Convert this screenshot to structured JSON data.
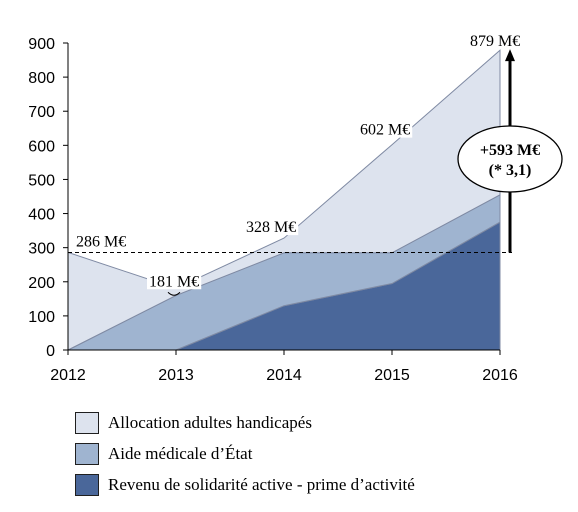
{
  "chart_data": {
    "type": "area",
    "stacked": true,
    "x": [
      "2012",
      "2013",
      "2014",
      "2015",
      "2016"
    ],
    "ylim": [
      0,
      900
    ],
    "yticks": [
      "0",
      "100",
      "200",
      "300",
      "400",
      "500",
      "600",
      "700",
      "800",
      "900"
    ],
    "series": [
      {
        "name": "Revenu de solidarité active - prime d’activité",
        "values": [
          0,
          0,
          130,
          195,
          375
        ],
        "color": "#4a679a"
      },
      {
        "name": "Aide médicale d’État",
        "values": [
          0,
          160,
          155,
          90,
          80
        ],
        "color": "#9fb4d0"
      },
      {
        "name": "Allocation adultes handicapés",
        "values": [
          286,
          21,
          43,
          317,
          424
        ],
        "color": "#dde3ee"
      }
    ],
    "annotations": {
      "v2012": "286 M€",
      "v2013": "181 M€",
      "v2014": "328 M€",
      "v2015": "602 M€",
      "v2016": "879 M€",
      "reference_line": 286,
      "callout_line1": "+593 M€",
      "callout_line2": "(* 3,1)"
    },
    "legend_position": "bottom",
    "grid": false
  }
}
